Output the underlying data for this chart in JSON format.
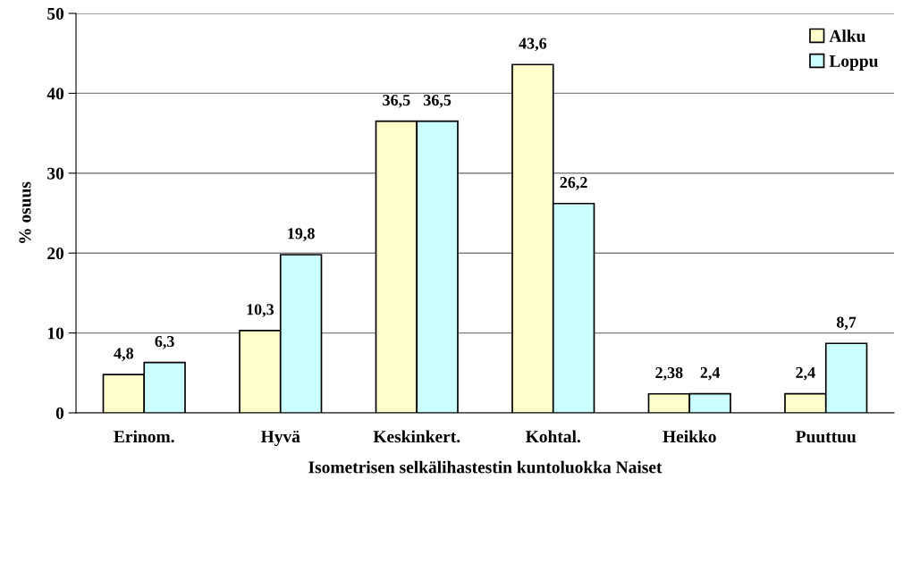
{
  "chart_data": {
    "type": "bar",
    "xlabel": "Isometrisen selkälihastestin kuntoluokka Naiset",
    "ylabel": "% osuus",
    "categories": [
      "Erinom.",
      "Hyvä",
      "Keskinkert.",
      "Kohtal.",
      "Heikko",
      "Puuttuu"
    ],
    "series": [
      {
        "name": "Alku",
        "color": "#ffffcc",
        "values": [
          4.8,
          10.3,
          36.5,
          43.6,
          2.38,
          2.4
        ],
        "value_labels": [
          "4,8",
          "10,3",
          "36,5",
          "43,6",
          "2,38",
          "2,4"
        ]
      },
      {
        "name": "Loppu",
        "color": "#ccffff",
        "values": [
          6.3,
          19.8,
          36.5,
          26.2,
          2.4,
          8.7
        ],
        "value_labels": [
          "6,3",
          "19,8",
          "36,5",
          "26,2",
          "2,4",
          "8,7"
        ]
      }
    ],
    "ylim": [
      0,
      50
    ],
    "yticks": [
      0,
      10,
      20,
      30,
      40,
      50
    ],
    "grid": "y",
    "legend": "top right"
  }
}
